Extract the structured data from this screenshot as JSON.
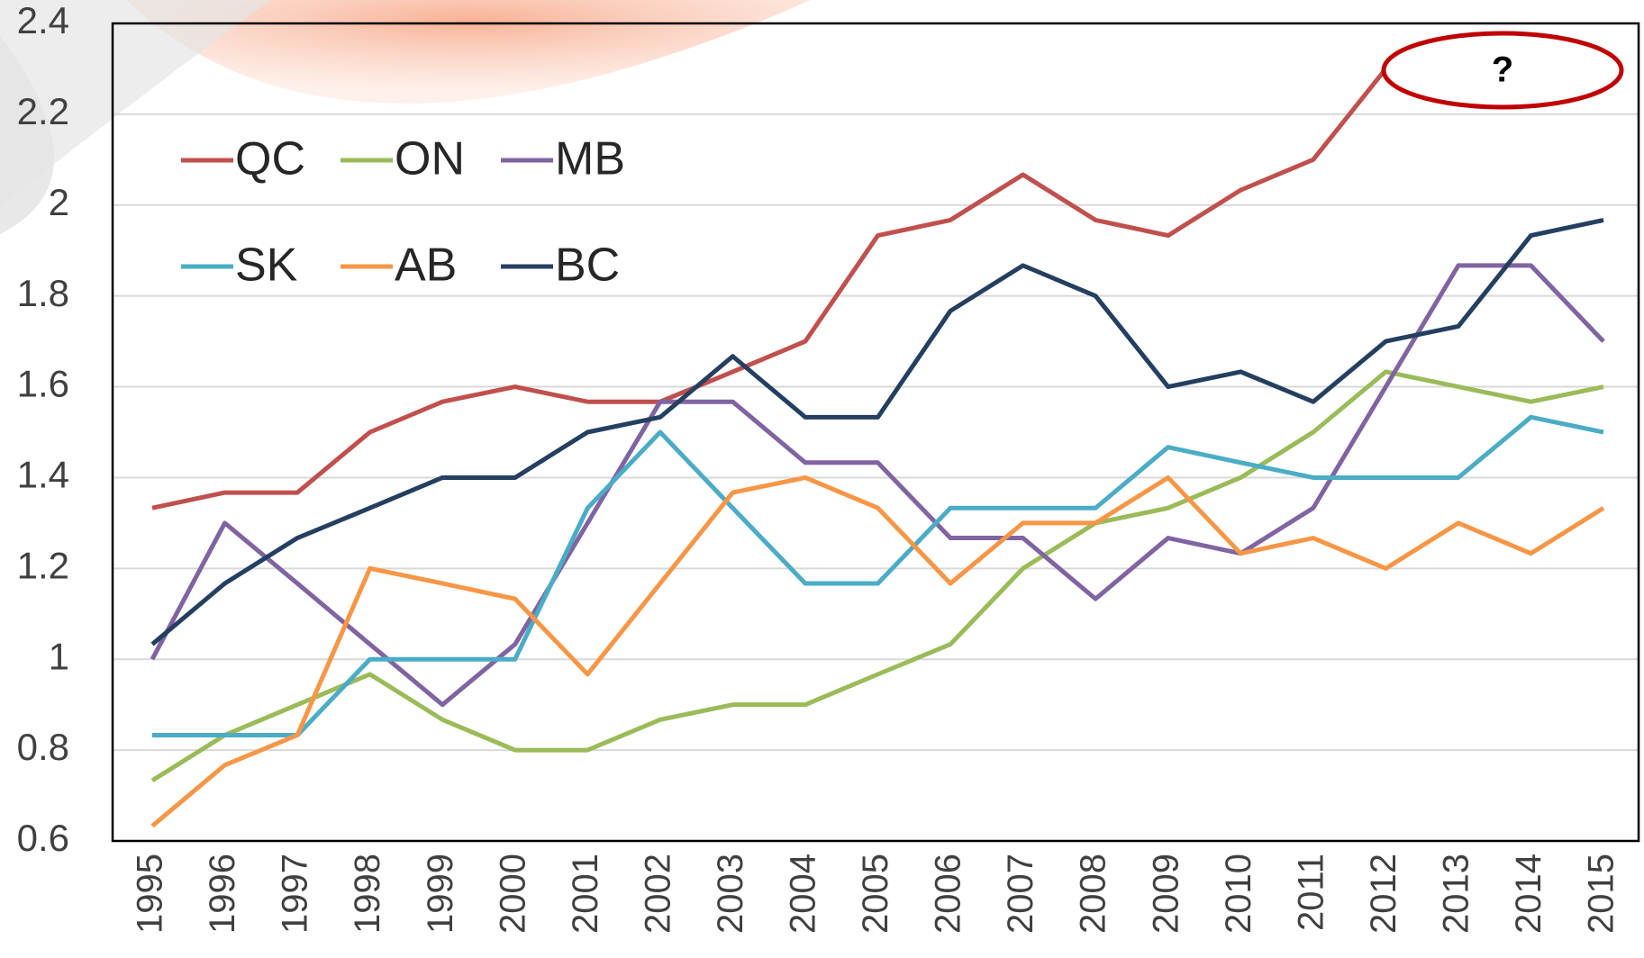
{
  "chart_data": {
    "type": "line",
    "categories": [
      "1995",
      "1996",
      "1997",
      "1998",
      "1999",
      "2000",
      "2001",
      "2002",
      "2003",
      "2004",
      "2005",
      "2006",
      "2007",
      "2008",
      "2009",
      "2010",
      "2011",
      "2012",
      "2013",
      "2014",
      "2015"
    ],
    "series": [
      {
        "name": "QC",
        "color": "#c0504d",
        "values": [
          1.333,
          1.367,
          1.367,
          1.5,
          1.567,
          1.6,
          1.567,
          1.567,
          1.633,
          1.7,
          1.933,
          1.967,
          2.067,
          1.967,
          1.933,
          2.033,
          2.1,
          2.3,
          null,
          null,
          null
        ]
      },
      {
        "name": "ON",
        "color": "#9bbb59",
        "values": [
          0.733,
          0.833,
          0.9,
          0.967,
          0.867,
          0.8,
          0.8,
          0.867,
          0.9,
          0.9,
          0.967,
          1.033,
          1.2,
          1.3,
          1.333,
          1.4,
          1.5,
          1.633,
          1.6,
          1.567,
          1.6
        ]
      },
      {
        "name": "MB",
        "color": "#8064a2",
        "values": [
          1.0,
          1.3,
          1.167,
          1.033,
          0.9,
          1.033,
          1.3,
          1.567,
          1.567,
          1.433,
          1.433,
          1.267,
          1.267,
          1.133,
          1.267,
          1.233,
          1.333,
          1.6,
          1.867,
          1.867,
          1.7
        ]
      },
      {
        "name": "SK",
        "color": "#4bacc6",
        "values": [
          0.833,
          0.833,
          0.833,
          1.0,
          1.0,
          1.0,
          1.333,
          1.5,
          1.333,
          1.167,
          1.167,
          1.333,
          1.333,
          1.333,
          1.467,
          1.433,
          1.4,
          1.4,
          1.4,
          1.533,
          1.5
        ]
      },
      {
        "name": "AB",
        "color": "#f79646",
        "values": [
          0.633,
          0.767,
          0.833,
          1.2,
          1.167,
          1.133,
          0.967,
          1.167,
          1.367,
          1.4,
          1.333,
          1.167,
          1.3,
          1.3,
          1.4,
          1.233,
          1.267,
          1.2,
          1.3,
          1.233,
          1.333
        ]
      },
      {
        "name": "BC",
        "color": "#243f60",
        "values": [
          1.033,
          1.167,
          1.267,
          1.333,
          1.4,
          1.4,
          1.5,
          1.533,
          1.667,
          1.533,
          1.533,
          1.767,
          1.867,
          1.8,
          1.6,
          1.633,
          1.567,
          1.7,
          1.733,
          1.933,
          1.967
        ]
      }
    ],
    "ylim": [
      0.6,
      2.4
    ],
    "yticks": [
      0.6,
      0.8,
      1,
      1.2,
      1.4,
      1.6,
      1.8,
      2,
      2.2,
      2.4
    ],
    "grid": true,
    "legend": "upper left",
    "annotation": "?"
  }
}
